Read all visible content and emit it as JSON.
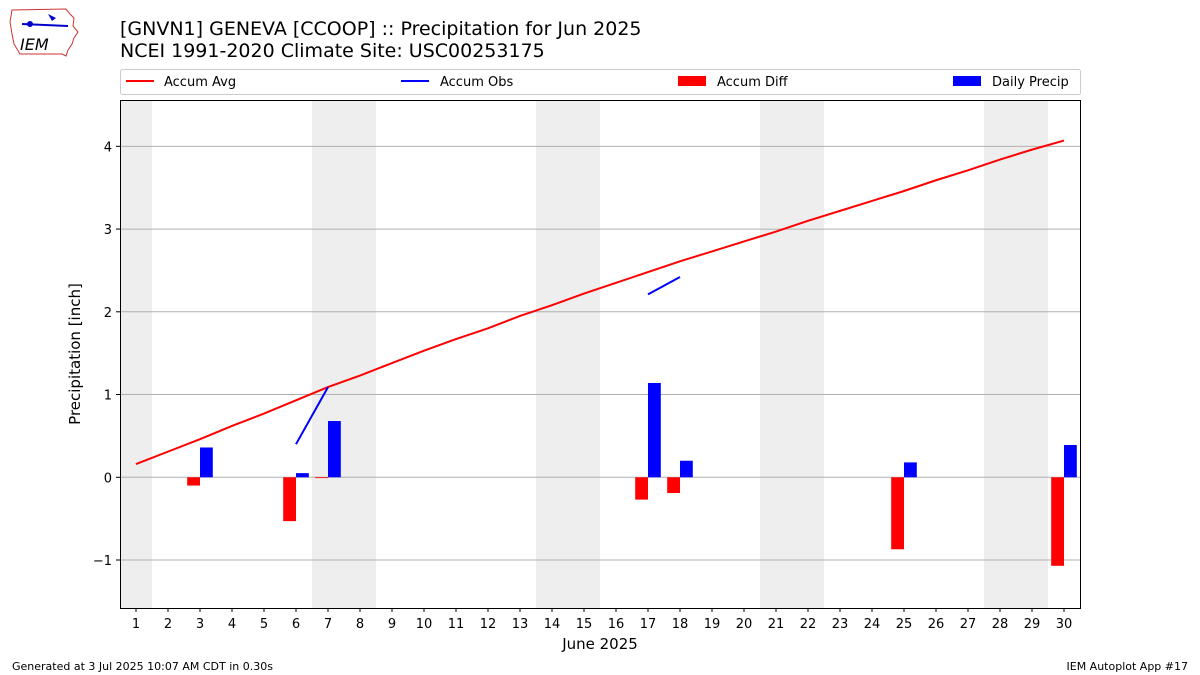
{
  "header": {
    "logo_text": "IEM",
    "title_line1": "[GNVN1] GENEVA [CCOOP] :: Precipitation for Jun 2025",
    "title_line2": "NCEI 1991-2020 Climate Site: USC00253175"
  },
  "footer": {
    "generated": "Generated at 3 Jul 2025 10:07 AM CDT in 0.30s",
    "app": "IEM Autoplot App #17"
  },
  "colors": {
    "accum_avg": "#ff0000",
    "accum_obs": "#0000ff",
    "accum_diff": "#ff0000",
    "daily_precip": "#0000ff",
    "weekend_shade": "#eeeeee",
    "grid": "#b0b0b0"
  },
  "chart_data": {
    "type": "bar",
    "title": "[GNVN1] GENEVA [CCOOP] :: Precipitation for Jun 2025",
    "subtitle": "NCEI 1991-2020 Climate Site: USC00253175",
    "xlabel": "June 2025",
    "ylabel": "Precipitation [inch]",
    "xlim": [
      0.5,
      30.5
    ],
    "ylim": [
      -1.58,
      4.56
    ],
    "yticks": [
      -1,
      0,
      1,
      2,
      3,
      4
    ],
    "ytick_labels": [
      "−1",
      "0",
      "1",
      "2",
      "3",
      "4"
    ],
    "x": [
      1,
      2,
      3,
      4,
      5,
      6,
      7,
      8,
      9,
      10,
      11,
      12,
      13,
      14,
      15,
      16,
      17,
      18,
      19,
      20,
      21,
      22,
      23,
      24,
      25,
      26,
      27,
      28,
      29,
      30
    ],
    "grid": "horizontal",
    "legend_position": "top",
    "legend": [
      "Accum Avg",
      "Accum Obs",
      "Accum Diff",
      "Daily Precip"
    ],
    "weekend_shading": [
      [
        0.5,
        1.5
      ],
      [
        6.5,
        8.5
      ],
      [
        13.5,
        15.5
      ],
      [
        20.5,
        22.5
      ],
      [
        27.5,
        29.5
      ]
    ],
    "accum_avg": [
      0.16,
      0.31,
      0.46,
      0.62,
      0.77,
      0.93,
      1.09,
      1.23,
      1.38,
      1.53,
      1.67,
      1.8,
      1.95,
      2.08,
      2.22,
      2.35,
      2.48,
      2.61,
      2.73,
      2.85,
      2.97,
      3.1,
      3.22,
      3.34,
      3.46,
      3.59,
      3.71,
      3.84,
      3.96,
      4.07
    ],
    "accum_obs_segments": [
      [
        [
          6,
          0.4
        ],
        [
          7,
          1.09
        ]
      ],
      [
        [
          17,
          2.21
        ],
        [
          18,
          2.42
        ]
      ]
    ],
    "daily_precip": [
      {
        "day": 3,
        "value": 0.36
      },
      {
        "day": 6,
        "value": 0.05
      },
      {
        "day": 7,
        "value": 0.68
      },
      {
        "day": 17,
        "value": 1.14
      },
      {
        "day": 18,
        "value": 0.2
      },
      {
        "day": 25,
        "value": 0.18
      },
      {
        "day": 30,
        "value": 0.39
      }
    ],
    "accum_diff": [
      {
        "day": 3,
        "value": -0.1
      },
      {
        "day": 6,
        "value": -0.53
      },
      {
        "day": 7,
        "value": -0.01
      },
      {
        "day": 17,
        "value": -0.27
      },
      {
        "day": 18,
        "value": -0.19
      },
      {
        "day": 25,
        "value": -0.87
      },
      {
        "day": 30,
        "value": -1.07
      }
    ]
  }
}
